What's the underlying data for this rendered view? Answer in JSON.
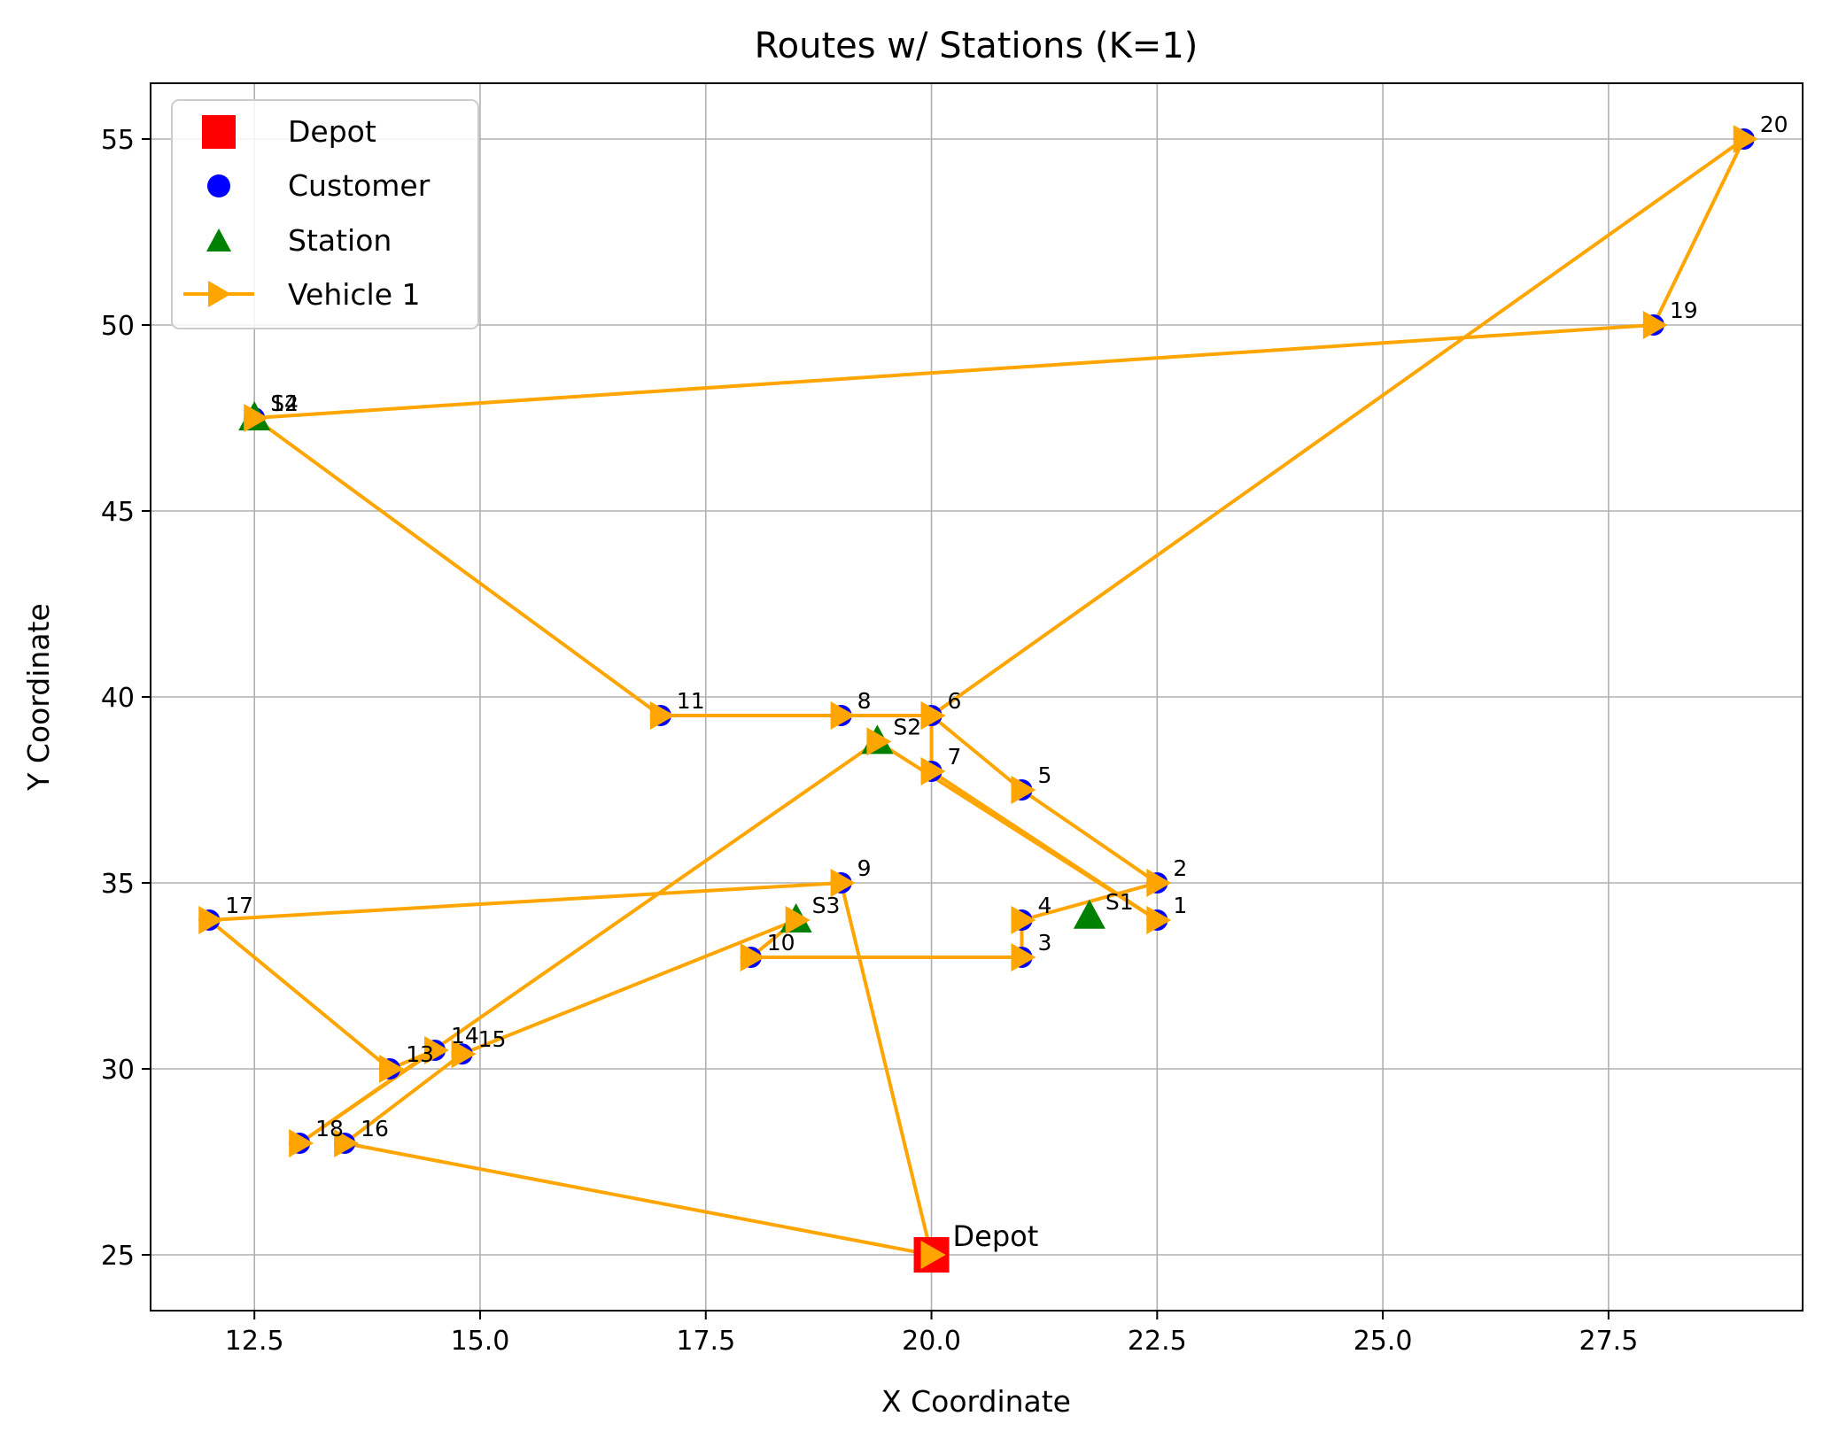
{
  "chart_data": {
    "type": "scatter",
    "title": "Routes w/ Stations (K=1)",
    "xlabel": "X Coordinate",
    "ylabel": "Y Coordinate",
    "xlim": [
      11.35,
      29.65
    ],
    "ylim": [
      23.5,
      56.5
    ],
    "xticks": [
      "12.5",
      "15.0",
      "17.5",
      "20.0",
      "22.5",
      "25.0",
      "27.5"
    ],
    "xtick_values": [
      12.5,
      15.0,
      17.5,
      20.0,
      22.5,
      25.0,
      27.5
    ],
    "yticks": [
      "25",
      "30",
      "35",
      "40",
      "45",
      "50",
      "55"
    ],
    "ytick_values": [
      25,
      30,
      35,
      40,
      45,
      50,
      55
    ],
    "grid": true,
    "legend_placement": "top-left",
    "legend": [
      "Depot",
      "Customer",
      "Station",
      "Vehicle 1"
    ],
    "colors": {
      "depot": "#ff0000",
      "customer": "#0000ff",
      "station": "#008000",
      "vehicle": "#ffa500"
    },
    "depot": {
      "label": "Depot",
      "x": 20,
      "y": 25
    },
    "customers": [
      {
        "label": "1",
        "x": 22.5,
        "y": 34
      },
      {
        "label": "2",
        "x": 22.5,
        "y": 35
      },
      {
        "label": "3",
        "x": 21,
        "y": 33
      },
      {
        "label": "4",
        "x": 21,
        "y": 34
      },
      {
        "label": "5",
        "x": 21,
        "y": 37.5
      },
      {
        "label": "6",
        "x": 20,
        "y": 39.5
      },
      {
        "label": "7",
        "x": 20,
        "y": 38
      },
      {
        "label": "8",
        "x": 19,
        "y": 39.5
      },
      {
        "label": "9",
        "x": 19,
        "y": 35
      },
      {
        "label": "10",
        "x": 18,
        "y": 33
      },
      {
        "label": "11",
        "x": 17,
        "y": 39.5
      },
      {
        "label": "12",
        "x": 12.5,
        "y": 47.5
      },
      {
        "label": "13",
        "x": 14,
        "y": 30
      },
      {
        "label": "14",
        "x": 14.5,
        "y": 30.5
      },
      {
        "label": "15",
        "x": 14.8,
        "y": 30.4
      },
      {
        "label": "16",
        "x": 13.5,
        "y": 28
      },
      {
        "label": "17",
        "x": 12,
        "y": 34
      },
      {
        "label": "18",
        "x": 13,
        "y": 28
      },
      {
        "label": "19",
        "x": 28,
        "y": 50
      },
      {
        "label": "20",
        "x": 29,
        "y": 55
      }
    ],
    "stations": [
      {
        "label": "S1",
        "x": 21.75,
        "y": 34.1
      },
      {
        "label": "S2",
        "x": 19.4,
        "y": 38.8
      },
      {
        "label": "S3",
        "x": 18.5,
        "y": 34
      },
      {
        "label": "S4",
        "x": 12.5,
        "y": 47.5
      }
    ],
    "series": [
      {
        "name": "Vehicle 1",
        "route": [
          [
            20,
            25
          ],
          [
            13.5,
            28
          ],
          [
            14.8,
            30.4
          ],
          [
            18.5,
            34
          ],
          [
            18,
            33
          ],
          [
            21,
            33
          ],
          [
            21,
            34
          ],
          [
            22.5,
            35
          ],
          [
            21,
            37.5
          ],
          [
            20,
            39.5
          ],
          [
            19,
            39.5
          ],
          [
            17,
            39.5
          ],
          [
            12.5,
            47.5
          ],
          [
            28,
            50
          ],
          [
            29,
            55
          ],
          [
            20,
            39.5
          ],
          [
            20,
            38
          ],
          [
            22.5,
            34
          ],
          [
            19.4,
            38.8
          ],
          [
            13,
            28
          ],
          [
            14.5,
            30.5
          ],
          [
            14,
            30
          ],
          [
            12,
            34
          ],
          [
            19,
            35
          ],
          [
            20,
            25
          ]
        ]
      }
    ]
  }
}
